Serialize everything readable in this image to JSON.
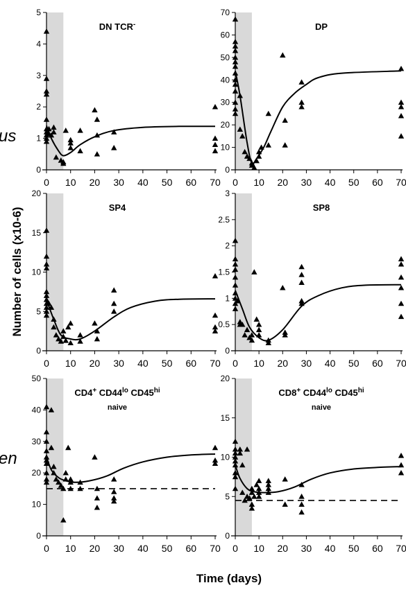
{
  "figure": {
    "ylabel": "Number of cells (x10-6)",
    "xlabel": "Time (days)",
    "side_labels": [
      "us",
      "en"
    ]
  },
  "chart_data": [
    {
      "type": "scatter",
      "title": "DN TCR-",
      "xlim": [
        0,
        70
      ],
      "ylim": [
        0,
        5
      ],
      "xticks": [
        0,
        10,
        20,
        30,
        40,
        50,
        60,
        70
      ],
      "yticks": [
        0,
        1,
        2,
        3,
        4,
        5
      ],
      "ytick_labels": [
        "0",
        "1",
        "2",
        "3",
        "4",
        "5"
      ],
      "shaded_days": [
        0,
        7
      ],
      "points": [
        [
          0,
          4.4
        ],
        [
          0,
          2.9
        ],
        [
          0,
          2.5
        ],
        [
          0,
          2.4
        ],
        [
          0,
          1.6
        ],
        [
          0,
          1.3
        ],
        [
          0,
          1.2
        ],
        [
          0,
          1.1
        ],
        [
          0,
          1.0
        ],
        [
          0,
          0.9
        ],
        [
          1,
          1.15
        ],
        [
          1,
          1.3
        ],
        [
          2,
          1.1
        ],
        [
          3,
          1.35
        ],
        [
          3,
          1.2
        ],
        [
          4,
          0.4
        ],
        [
          6,
          0.3
        ],
        [
          7,
          0.2
        ],
        [
          7,
          0.25
        ],
        [
          8,
          1.25
        ],
        [
          10,
          0.95
        ],
        [
          10,
          0.85
        ],
        [
          10,
          0.7
        ],
        [
          14,
          1.25
        ],
        [
          14,
          0.6
        ],
        [
          20,
          1.9
        ],
        [
          21,
          1.6
        ],
        [
          21,
          1.1
        ],
        [
          21,
          0.5
        ],
        [
          28,
          1.2
        ],
        [
          28,
          0.7
        ],
        [
          70,
          2.0
        ],
        [
          70,
          1.0
        ],
        [
          70,
          0.8
        ],
        [
          70,
          0.6
        ]
      ],
      "fit": [
        [
          0,
          1.4
        ],
        [
          2,
          1.0
        ],
        [
          5,
          0.6
        ],
        [
          7,
          0.45
        ],
        [
          10,
          0.55
        ],
        [
          14,
          0.8
        ],
        [
          20,
          1.05
        ],
        [
          28,
          1.25
        ],
        [
          40,
          1.35
        ],
        [
          55,
          1.38
        ],
        [
          70,
          1.38
        ]
      ]
    },
    {
      "type": "scatter",
      "title": "DP",
      "xlim": [
        0,
        70
      ],
      "ylim": [
        0,
        70
      ],
      "xticks": [
        0,
        10,
        20,
        30,
        40,
        50,
        60,
        70
      ],
      "yticks": [
        0,
        10,
        20,
        30,
        40,
        50,
        60,
        70
      ],
      "ytick_labels": [
        "0",
        "10",
        "20",
        "30",
        "40",
        "50",
        "60",
        "70"
      ],
      "shaded_days": [
        0,
        7
      ],
      "points": [
        [
          0,
          67
        ],
        [
          0,
          57
        ],
        [
          0,
          55
        ],
        [
          0,
          53
        ],
        [
          0,
          50
        ],
        [
          0,
          48
        ],
        [
          0,
          46
        ],
        [
          0,
          43
        ],
        [
          0,
          40
        ],
        [
          0,
          38
        ],
        [
          0,
          35
        ],
        [
          0,
          30
        ],
        [
          0,
          27
        ],
        [
          0,
          25
        ],
        [
          2,
          33
        ],
        [
          2,
          18
        ],
        [
          3,
          15
        ],
        [
          4,
          8
        ],
        [
          5,
          6
        ],
        [
          6,
          5
        ],
        [
          7,
          3
        ],
        [
          7,
          2
        ],
        [
          8,
          1
        ],
        [
          9,
          4
        ],
        [
          10,
          6
        ],
        [
          10,
          8
        ],
        [
          11,
          10
        ],
        [
          14,
          25
        ],
        [
          14,
          11
        ],
        [
          20,
          51
        ],
        [
          21,
          22
        ],
        [
          21,
          11
        ],
        [
          28,
          39
        ],
        [
          28,
          30
        ],
        [
          28,
          28
        ],
        [
          70,
          45
        ],
        [
          70,
          30
        ],
        [
          70,
          28
        ],
        [
          70,
          24
        ],
        [
          70,
          15
        ]
      ],
      "fit": [
        [
          0,
          44
        ],
        [
          2,
          33
        ],
        [
          5,
          12
        ],
        [
          7,
          3
        ],
        [
          9,
          5
        ],
        [
          12,
          10
        ],
        [
          15,
          17
        ],
        [
          20,
          28
        ],
        [
          25,
          34
        ],
        [
          30,
          38
        ],
        [
          35,
          41
        ],
        [
          45,
          43
        ],
        [
          70,
          44
        ]
      ]
    },
    {
      "type": "scatter",
      "title": "SP4",
      "xlim": [
        0,
        70
      ],
      "ylim": [
        0,
        20
      ],
      "xticks": [
        0,
        10,
        20,
        30,
        40,
        50,
        60,
        70
      ],
      "yticks": [
        0,
        5,
        10,
        15,
        20
      ],
      "ytick_labels": [
        "0",
        "5",
        "10",
        "15",
        "20"
      ],
      "shaded_days": [
        0,
        7
      ],
      "points": [
        [
          0,
          15.3
        ],
        [
          0,
          12
        ],
        [
          0,
          11
        ],
        [
          0,
          10.5
        ],
        [
          0,
          7.5
        ],
        [
          0,
          7
        ],
        [
          0,
          6.5
        ],
        [
          0,
          6
        ],
        [
          0,
          5.5
        ],
        [
          0,
          5
        ],
        [
          0,
          4.5
        ],
        [
          1,
          6
        ],
        [
          2,
          5.5
        ],
        [
          3,
          4
        ],
        [
          3,
          3
        ],
        [
          4,
          2
        ],
        [
          5,
          1.5
        ],
        [
          6,
          1.2
        ],
        [
          7,
          2.5
        ],
        [
          7,
          1.8
        ],
        [
          8,
          1.3
        ],
        [
          9,
          3
        ],
        [
          10,
          3.5
        ],
        [
          10,
          1
        ],
        [
          14,
          2
        ],
        [
          14,
          1.2
        ],
        [
          20,
          3.5
        ],
        [
          21,
          2.5
        ],
        [
          21,
          1.5
        ],
        [
          28,
          7.7
        ],
        [
          28,
          6
        ],
        [
          28,
          5
        ],
        [
          70,
          9.5
        ],
        [
          70,
          4.5
        ],
        [
          70,
          3
        ],
        [
          70,
          2.5
        ]
      ],
      "fit": [
        [
          0,
          6.5
        ],
        [
          3,
          4
        ],
        [
          6,
          2
        ],
        [
          10,
          1.5
        ],
        [
          14,
          1.5
        ],
        [
          20,
          2.5
        ],
        [
          28,
          4.3
        ],
        [
          35,
          5.5
        ],
        [
          45,
          6.3
        ],
        [
          55,
          6.55
        ],
        [
          70,
          6.6
        ]
      ]
    },
    {
      "type": "scatter",
      "title": "SP8",
      "xlim": [
        0,
        70
      ],
      "ylim": [
        0,
        3
      ],
      "xticks": [
        0,
        10,
        20,
        30,
        40,
        50,
        60,
        70
      ],
      "yticks": [
        0,
        0.5,
        1,
        1.5,
        2,
        2.5,
        3
      ],
      "ytick_labels": [
        "0",
        "0.5",
        "1",
        "1.5",
        "2",
        "2.5",
        "3"
      ],
      "shaded_days": [
        0,
        7
      ],
      "points": [
        [
          0,
          2.1
        ],
        [
          0,
          1.75
        ],
        [
          0,
          1.65
        ],
        [
          0,
          1.55
        ],
        [
          0,
          1.4
        ],
        [
          0,
          1.25
        ],
        [
          0,
          1.1
        ],
        [
          0,
          1.0
        ],
        [
          0,
          0.9
        ],
        [
          0,
          0.8
        ],
        [
          1,
          0.95
        ],
        [
          2,
          0.55
        ],
        [
          2,
          0.5
        ],
        [
          3,
          0.5
        ],
        [
          4,
          0.3
        ],
        [
          5,
          0.4
        ],
        [
          6,
          0.25
        ],
        [
          7,
          0.2
        ],
        [
          7,
          0.3
        ],
        [
          8,
          1.5
        ],
        [
          9,
          0.6
        ],
        [
          10,
          0.5
        ],
        [
          10,
          0.4
        ],
        [
          10,
          0.3
        ],
        [
          14,
          0.15
        ],
        [
          14,
          0.2
        ],
        [
          20,
          1.2
        ],
        [
          21,
          0.35
        ],
        [
          21,
          0.3
        ],
        [
          28,
          1.6
        ],
        [
          28,
          1.45
        ],
        [
          28,
          1.3
        ],
        [
          28,
          0.95
        ],
        [
          28,
          0.9
        ],
        [
          70,
          1.75
        ],
        [
          70,
          1.65
        ],
        [
          70,
          1.4
        ],
        [
          70,
          1.2
        ],
        [
          70,
          0.9
        ],
        [
          70,
          0.65
        ]
      ],
      "fit": [
        [
          0,
          1.15
        ],
        [
          3,
          0.8
        ],
        [
          6,
          0.45
        ],
        [
          10,
          0.25
        ],
        [
          14,
          0.2
        ],
        [
          20,
          0.4
        ],
        [
          28,
          0.85
        ],
        [
          35,
          1.05
        ],
        [
          45,
          1.2
        ],
        [
          55,
          1.25
        ],
        [
          70,
          1.26
        ]
      ]
    },
    {
      "type": "scatter",
      "title": "CD4+ CD44lo CD45hi",
      "title_parts": {
        "a": "CD4",
        "a_sup": "+",
        "b": " CD44",
        "b_sup": "lo",
        "c": " CD45",
        "c_sup": "hi"
      },
      "subtitle": "naive",
      "xlim": [
        0,
        70
      ],
      "ylim": [
        0,
        50
      ],
      "xticks": [
        0,
        10,
        20,
        30,
        40,
        50,
        60,
        70
      ],
      "yticks": [
        0,
        10,
        20,
        30,
        40,
        50
      ],
      "ytick_labels": [
        "0",
        "10",
        "20",
        "30",
        "40",
        "50"
      ],
      "shaded_days": [
        0,
        7
      ],
      "baseline": 15,
      "points": [
        [
          0,
          41
        ],
        [
          0,
          33
        ],
        [
          0,
          30
        ],
        [
          0,
          27
        ],
        [
          0,
          25
        ],
        [
          0,
          24
        ],
        [
          0,
          23
        ],
        [
          0,
          20
        ],
        [
          0,
          18
        ],
        [
          0,
          17
        ],
        [
          2,
          40
        ],
        [
          2,
          28
        ],
        [
          3,
          22
        ],
        [
          3,
          20
        ],
        [
          4,
          18
        ],
        [
          5,
          17
        ],
        [
          6,
          16
        ],
        [
          7,
          5
        ],
        [
          7,
          15
        ],
        [
          8,
          20
        ],
        [
          8,
          18
        ],
        [
          9,
          28
        ],
        [
          10,
          18
        ],
        [
          10,
          17
        ],
        [
          10,
          15
        ],
        [
          14,
          17
        ],
        [
          14,
          15
        ],
        [
          20,
          25
        ],
        [
          21,
          15
        ],
        [
          21,
          12
        ],
        [
          21,
          9
        ],
        [
          28,
          18
        ],
        [
          28,
          14
        ],
        [
          28,
          12
        ],
        [
          28,
          11
        ],
        [
          70,
          28
        ],
        [
          70,
          24
        ],
        [
          70,
          23
        ]
      ],
      "fit": [
        [
          0,
          25
        ],
        [
          2,
          21
        ],
        [
          5,
          18.5
        ],
        [
          8,
          17.5
        ],
        [
          12,
          17
        ],
        [
          18,
          17.5
        ],
        [
          25,
          19
        ],
        [
          32,
          21.5
        ],
        [
          40,
          23.5
        ],
        [
          50,
          25
        ],
        [
          60,
          25.7
        ],
        [
          70,
          26
        ]
      ]
    },
    {
      "type": "scatter",
      "title": "CD8+ CD44lo CD45hi",
      "title_parts": {
        "a": "CD8",
        "a_sup": "+",
        "b": " CD44",
        "b_sup": "lo",
        "c": " CD45",
        "c_sup": "hi"
      },
      "subtitle": "naive",
      "xlim": [
        0,
        70
      ],
      "ylim": [
        0,
        20
      ],
      "xticks": [
        0,
        10,
        20,
        30,
        40,
        50,
        60,
        70
      ],
      "yticks": [
        0,
        5,
        10,
        15,
        20
      ],
      "ytick_labels": [
        "0",
        "5",
        "10",
        "15",
        "20"
      ],
      "shaded_days": [
        0,
        7
      ],
      "baseline": 4.5,
      "points": [
        [
          0,
          12
        ],
        [
          0,
          11
        ],
        [
          0,
          10.5
        ],
        [
          0,
          10
        ],
        [
          0,
          9.5
        ],
        [
          0,
          9
        ],
        [
          0,
          8
        ],
        [
          0,
          7.5
        ],
        [
          0,
          6
        ],
        [
          2,
          11
        ],
        [
          2,
          10.5
        ],
        [
          3,
          9
        ],
        [
          3,
          5.5
        ],
        [
          4,
          4.5
        ],
        [
          5,
          11
        ],
        [
          5,
          5
        ],
        [
          6,
          4.8
        ],
        [
          7,
          6
        ],
        [
          7,
          5.5
        ],
        [
          7,
          4
        ],
        [
          7,
          3.5
        ],
        [
          8,
          5
        ],
        [
          9,
          6.5
        ],
        [
          10,
          7
        ],
        [
          10,
          6
        ],
        [
          10,
          5.5
        ],
        [
          10,
          5
        ],
        [
          14,
          7
        ],
        [
          14,
          6.5
        ],
        [
          14,
          6
        ],
        [
          14,
          5.5
        ],
        [
          21,
          7.2
        ],
        [
          21,
          4
        ],
        [
          28,
          6.5
        ],
        [
          28,
          5
        ],
        [
          28,
          4
        ],
        [
          28,
          3
        ],
        [
          70,
          10.2
        ],
        [
          70,
          9
        ],
        [
          70,
          8
        ]
      ],
      "fit": [
        [
          0,
          9
        ],
        [
          2,
          7.3
        ],
        [
          5,
          6
        ],
        [
          8,
          5.6
        ],
        [
          12,
          5.5
        ],
        [
          18,
          5.6
        ],
        [
          25,
          6.2
        ],
        [
          32,
          7.2
        ],
        [
          40,
          8
        ],
        [
          50,
          8.5
        ],
        [
          60,
          8.7
        ],
        [
          70,
          8.8
        ]
      ]
    }
  ]
}
